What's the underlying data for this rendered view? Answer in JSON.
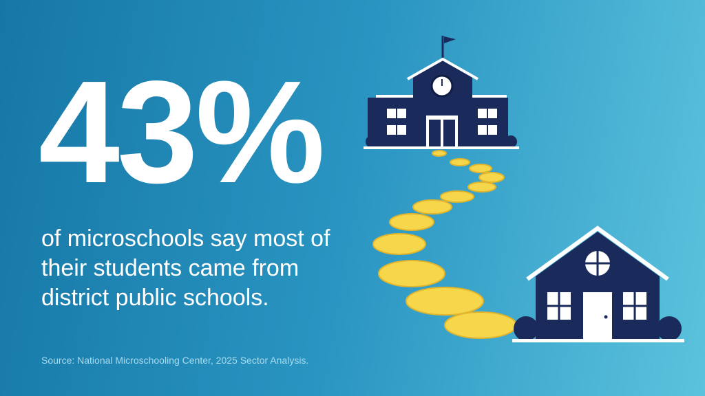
{
  "headline": {
    "stat": "43%",
    "text": "of microschools say most of their students came from district public schools."
  },
  "source": "Source: National Microschooling Center, 2025 Sector Analysis."
}
